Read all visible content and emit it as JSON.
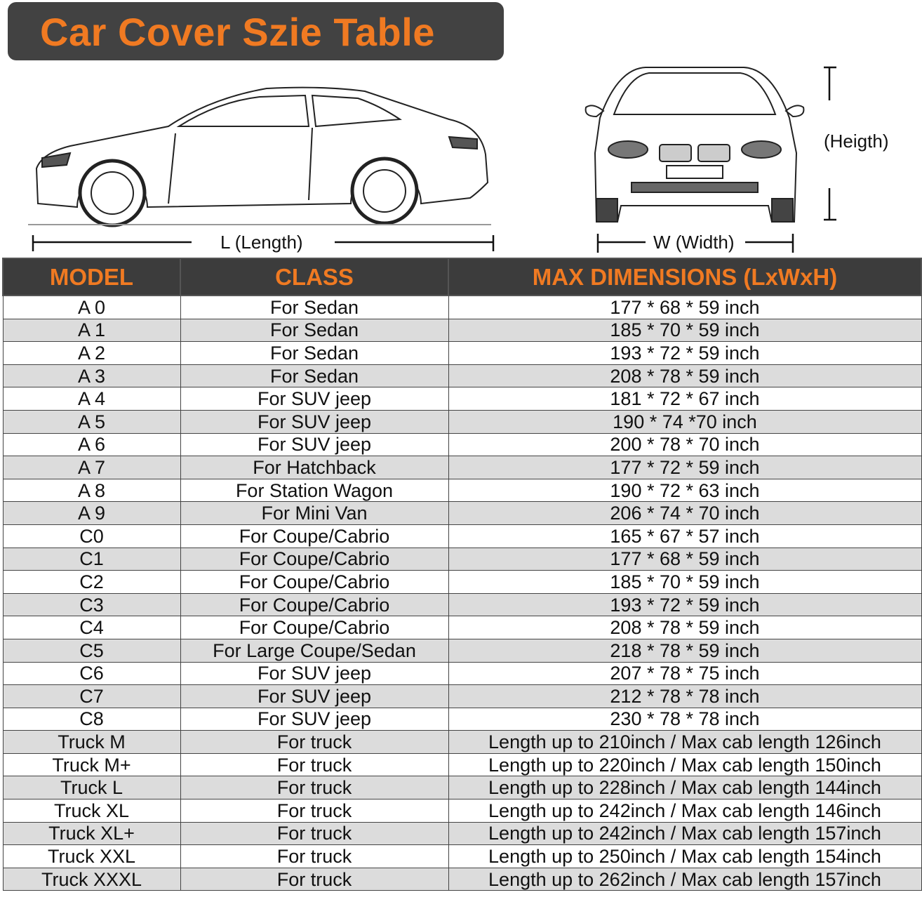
{
  "title": "Car Cover Szie Table",
  "labels": {
    "length": "L (Length)",
    "width": "W (Width)",
    "height": "(Heigth)"
  },
  "colors": {
    "accent": "#f07a22",
    "header_bg": "#3c3c3c",
    "alt_row": "#dcdcdc"
  },
  "table": {
    "headers": [
      "MODEL",
      "CLASS",
      "MAX DIMENSIONS (LxWxH)"
    ],
    "rows": [
      [
        "A 0",
        "For Sedan",
        "177 * 68 * 59 inch"
      ],
      [
        "A 1",
        "For Sedan",
        "185 * 70 * 59 inch"
      ],
      [
        "A 2",
        "For Sedan",
        "193 * 72 * 59 inch"
      ],
      [
        "A 3",
        "For Sedan",
        "208 * 78 * 59 inch"
      ],
      [
        "A 4",
        "For SUV jeep",
        "181 * 72 * 67 inch"
      ],
      [
        "A 5",
        "For SUV jeep",
        "190 * 74  *70 inch"
      ],
      [
        "A 6",
        "For SUV jeep",
        "200 * 78 * 70 inch"
      ],
      [
        "A 7",
        "For Hatchback",
        "177 * 72 * 59 inch"
      ],
      [
        "A 8",
        "For Station Wagon",
        "190 * 72 * 63 inch"
      ],
      [
        "A 9",
        "For Mini Van",
        "206 * 74 * 70 inch"
      ],
      [
        "C0",
        "For Coupe/Cabrio",
        "165 * 67 * 57 inch"
      ],
      [
        "C1",
        "For Coupe/Cabrio",
        "177 * 68 * 59 inch"
      ],
      [
        "C2",
        "For Coupe/Cabrio",
        "185 * 70 * 59 inch"
      ],
      [
        "C3",
        "For Coupe/Cabrio",
        "193 * 72 * 59 inch"
      ],
      [
        "C4",
        "For Coupe/Cabrio",
        "208 * 78 * 59 inch"
      ],
      [
        "C5",
        "For Large Coupe/Sedan",
        "218 * 78 * 59 inch"
      ],
      [
        "C6",
        "For SUV jeep",
        "207 * 78 * 75 inch"
      ],
      [
        "C7",
        "For SUV jeep",
        "212 * 78 * 78 inch"
      ],
      [
        "C8",
        "For SUV jeep",
        "230 * 78 * 78 inch"
      ],
      [
        "Truck M",
        "For truck",
        "Length up to 210inch / Max cab length 126inch"
      ],
      [
        "Truck M+",
        "For truck",
        "Length up to 220inch / Max cab length 150inch"
      ],
      [
        "Truck L",
        "For truck",
        "Length up to 228inch / Max cab length 144inch"
      ],
      [
        "Truck XL",
        "For truck",
        "Length up to 242inch / Max cab length 146inch"
      ],
      [
        "Truck XL+",
        "For truck",
        "Length up to 242inch / Max cab length 157inch"
      ],
      [
        "Truck XXL",
        "For truck",
        "Length up to 250inch / Max cab length 154inch"
      ],
      [
        "Truck XXXL",
        "For truck",
        "Length up to 262inch / Max cab length 157inch"
      ]
    ]
  }
}
